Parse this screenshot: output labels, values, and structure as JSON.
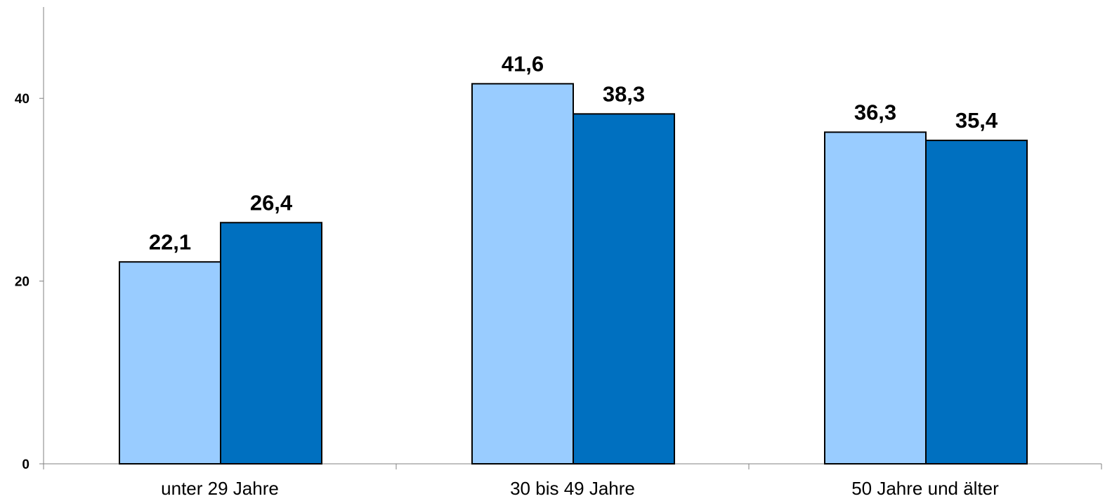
{
  "chart_data": {
    "type": "bar",
    "categories": [
      "unter 29 Jahre",
      "30 bis 49 Jahre",
      "50 Jahre und älter"
    ],
    "series": [
      {
        "values": [
          22.1,
          41.6,
          36.3
        ],
        "labels": [
          "22,1",
          "41,6",
          "36,3"
        ],
        "color": "#99ccff"
      },
      {
        "values": [
          26.4,
          38.3,
          35.4
        ],
        "labels": [
          "26,4",
          "38,3",
          "35,4"
        ],
        "color": "#0070c0"
      }
    ],
    "yticks": [
      0,
      20,
      40
    ],
    "ytick_labels": [
      "0",
      "20",
      "40"
    ],
    "ylim": [
      0,
      50
    ],
    "grid": false,
    "legend": "none"
  }
}
